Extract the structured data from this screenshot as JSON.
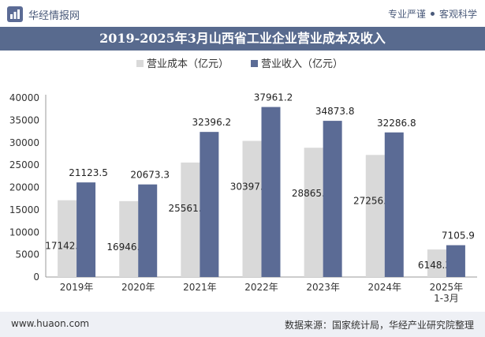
{
  "header": {
    "brand": "华经情报网",
    "tagline_left": "专业严谨",
    "tagline_right": "客观科学"
  },
  "footer": {
    "website": "www.huaon.com",
    "source": "数据来源：国家统计局，华经产业研究院整理"
  },
  "colors": {
    "cost": "#d9d9d9",
    "revenue": "#5b6b95",
    "title_bg": "#586a8e"
  },
  "chart_data": {
    "type": "bar",
    "title": "2019-2025年3月山西省工业企业营业成本及收入",
    "categories": [
      "2019年",
      "2020年",
      "2021年",
      "2022年",
      "2023年",
      "2024年",
      "2025年\n1-3月"
    ],
    "series": [
      {
        "name": "营业成本（亿元）",
        "values": [
          17142.5,
          16946.8,
          25561.5,
          30397.5,
          28865.9,
          27256.1,
          6148.3
        ]
      },
      {
        "name": "营业收入（亿元）",
        "values": [
          21123.5,
          20673.3,
          32396.2,
          37961.2,
          34873.8,
          32286.8,
          7105.9
        ]
      }
    ],
    "ylim": [
      0,
      40000
    ],
    "yticks": [
      0,
      5000,
      10000,
      15000,
      20000,
      25000,
      30000,
      35000,
      40000
    ],
    "legend_position": "top-center",
    "grid": false
  }
}
